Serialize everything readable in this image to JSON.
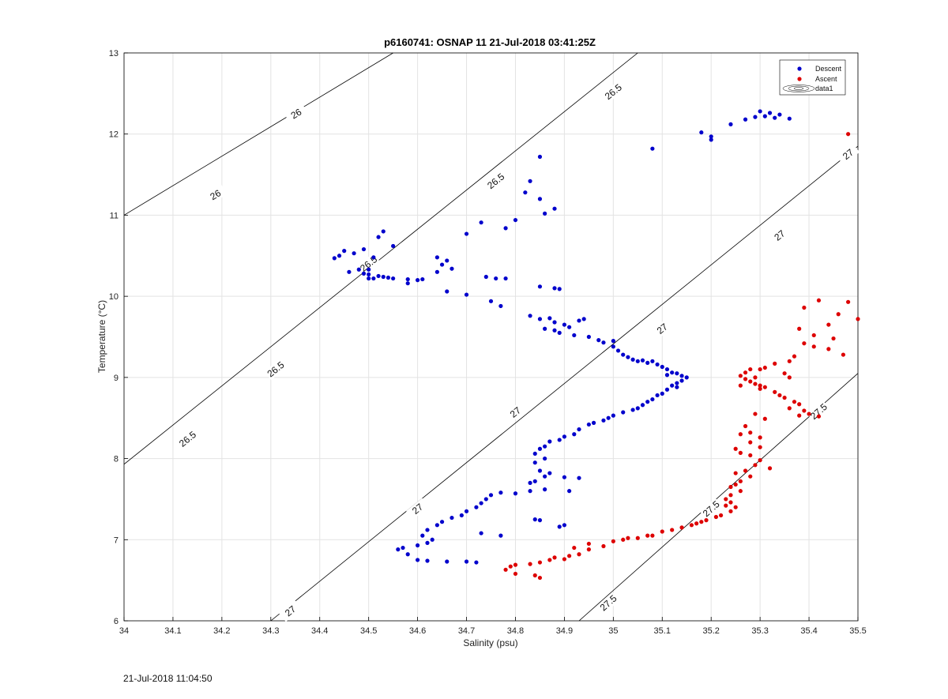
{
  "footer": {
    "timestamp": "21-Jul-2018 11:04:50"
  },
  "chart_data": {
    "type": "scatter",
    "title": "p6160741: OSNAP 11 21-Jul-2018 03:41:25Z",
    "xlabel": "Salinity (psu)",
    "ylabel": "Temperature (°C)",
    "xlim": [
      34,
      35.5
    ],
    "ylim": [
      6,
      13
    ],
    "xticks": [
      "34",
      "34.1",
      "34.2",
      "34.3",
      "34.4",
      "34.5",
      "34.6",
      "34.7",
      "34.8",
      "34.9",
      "35",
      "35.1",
      "35.2",
      "35.3",
      "35.4",
      "35.5"
    ],
    "yticks": [
      "6",
      "7",
      "8",
      "9",
      "10",
      "11",
      "12",
      "13"
    ],
    "grid": true,
    "legend": {
      "placement": "top-right",
      "entries": [
        "Descent",
        "Ascent",
        "data1"
      ]
    },
    "colors": {
      "descent": "#0000cc",
      "ascent": "#dd0000",
      "grid": "#e3e3e3",
      "contour": "#000000"
    },
    "contours": [
      {
        "level": "26",
        "segment": [
          [
            34.0,
            11.0
          ],
          [
            34.55,
            13.0
          ]
        ],
        "labels": [
          [
            34.187,
            11.25
          ],
          [
            34.352,
            12.25
          ]
        ]
      },
      {
        "level": "26.5",
        "segment": [
          [
            34.0,
            7.93
          ],
          [
            35.05,
            13.0
          ]
        ],
        "labels": [
          [
            34.31,
            9.1
          ],
          [
            34.13,
            8.24
          ],
          [
            34.5,
            10.4
          ],
          [
            34.76,
            11.42
          ],
          [
            35.0,
            12.52
          ]
        ]
      },
      {
        "level": "27",
        "segment": [
          [
            34.3,
            6.0
          ],
          [
            35.5,
            11.85
          ]
        ],
        "labels": [
          [
            34.34,
            6.12
          ],
          [
            34.6,
            7.38
          ],
          [
            34.8,
            8.57
          ],
          [
            35.1,
            9.6
          ],
          [
            35.34,
            10.75
          ],
          [
            35.48,
            11.75
          ]
        ]
      },
      {
        "level": "27.5",
        "segment": [
          [
            34.93,
            6.0
          ],
          [
            35.5,
            9.05
          ]
        ],
        "labels": [
          [
            34.99,
            6.22
          ],
          [
            35.2,
            7.38
          ],
          [
            35.42,
            8.58
          ]
        ]
      }
    ],
    "series": [
      {
        "name": "Descent",
        "points": [
          [
            35.3,
            12.28
          ],
          [
            35.32,
            12.26
          ],
          [
            35.34,
            12.24
          ],
          [
            35.31,
            12.22
          ],
          [
            35.29,
            12.21
          ],
          [
            35.33,
            12.2
          ],
          [
            35.36,
            12.19
          ],
          [
            35.27,
            12.18
          ],
          [
            35.24,
            12.12
          ],
          [
            35.18,
            12.02
          ],
          [
            35.2,
            11.97
          ],
          [
            35.2,
            11.93
          ],
          [
            35.08,
            11.82
          ],
          [
            34.85,
            11.72
          ],
          [
            34.83,
            11.42
          ],
          [
            34.82,
            11.28
          ],
          [
            34.85,
            11.2
          ],
          [
            34.88,
            11.08
          ],
          [
            34.86,
            11.02
          ],
          [
            34.8,
            10.94
          ],
          [
            34.73,
            10.91
          ],
          [
            34.78,
            10.84
          ],
          [
            34.7,
            10.77
          ],
          [
            34.53,
            10.8
          ],
          [
            34.52,
            10.73
          ],
          [
            34.55,
            10.62
          ],
          [
            34.45,
            10.56
          ],
          [
            34.44,
            10.5
          ],
          [
            34.43,
            10.47
          ],
          [
            34.49,
            10.58
          ],
          [
            34.47,
            10.53
          ],
          [
            34.51,
            10.48
          ],
          [
            34.64,
            10.48
          ],
          [
            34.66,
            10.44
          ],
          [
            34.65,
            10.39
          ],
          [
            34.67,
            10.34
          ],
          [
            34.64,
            10.3
          ],
          [
            34.48,
            10.33
          ],
          [
            34.5,
            10.33
          ],
          [
            34.46,
            10.3
          ],
          [
            34.49,
            10.28
          ],
          [
            34.5,
            10.27
          ],
          [
            34.52,
            10.25
          ],
          [
            34.53,
            10.24
          ],
          [
            34.54,
            10.23
          ],
          [
            34.55,
            10.22
          ],
          [
            34.51,
            10.22
          ],
          [
            34.5,
            10.22
          ],
          [
            34.58,
            10.21
          ],
          [
            34.6,
            10.2
          ],
          [
            34.61,
            10.21
          ],
          [
            34.58,
            10.16
          ],
          [
            34.74,
            10.24
          ],
          [
            34.76,
            10.22
          ],
          [
            34.78,
            10.22
          ],
          [
            34.85,
            10.12
          ],
          [
            34.88,
            10.1
          ],
          [
            34.89,
            10.09
          ],
          [
            34.66,
            10.06
          ],
          [
            34.7,
            10.02
          ],
          [
            34.75,
            9.94
          ],
          [
            34.77,
            9.88
          ],
          [
            34.83,
            9.76
          ],
          [
            34.85,
            9.72
          ],
          [
            34.87,
            9.73
          ],
          [
            34.88,
            9.68
          ],
          [
            34.9,
            9.65
          ],
          [
            34.91,
            9.62
          ],
          [
            34.93,
            9.7
          ],
          [
            34.94,
            9.72
          ],
          [
            34.86,
            9.6
          ],
          [
            34.88,
            9.58
          ],
          [
            34.89,
            9.55
          ],
          [
            34.92,
            9.52
          ],
          [
            34.95,
            9.5
          ],
          [
            34.97,
            9.46
          ],
          [
            35.0,
            9.45
          ],
          [
            34.98,
            9.43
          ],
          [
            35.0,
            9.38
          ],
          [
            35.01,
            9.33
          ],
          [
            35.02,
            9.28
          ],
          [
            35.03,
            9.25
          ],
          [
            35.04,
            9.22
          ],
          [
            35.05,
            9.2
          ],
          [
            35.06,
            9.21
          ],
          [
            35.07,
            9.18
          ],
          [
            35.08,
            9.2
          ],
          [
            35.09,
            9.16
          ],
          [
            35.1,
            9.13
          ],
          [
            35.11,
            9.1
          ],
          [
            35.12,
            9.06
          ],
          [
            35.13,
            9.05
          ],
          [
            35.11,
            9.03
          ],
          [
            35.14,
            9.02
          ],
          [
            35.15,
            9.0
          ],
          [
            35.14,
            8.96
          ],
          [
            35.13,
            8.93
          ],
          [
            35.12,
            8.9
          ],
          [
            35.13,
            8.88
          ],
          [
            35.11,
            8.85
          ],
          [
            35.1,
            8.8
          ],
          [
            35.09,
            8.78
          ],
          [
            35.08,
            8.73
          ],
          [
            35.07,
            8.7
          ],
          [
            35.06,
            8.66
          ],
          [
            35.05,
            8.62
          ],
          [
            35.04,
            8.6
          ],
          [
            35.02,
            8.57
          ],
          [
            35.0,
            8.53
          ],
          [
            34.99,
            8.5
          ],
          [
            34.98,
            8.47
          ],
          [
            34.96,
            8.44
          ],
          [
            34.95,
            8.42
          ],
          [
            34.93,
            8.36
          ],
          [
            34.92,
            8.3
          ],
          [
            34.9,
            8.27
          ],
          [
            34.89,
            8.23
          ],
          [
            34.87,
            8.21
          ],
          [
            34.86,
            8.15
          ],
          [
            34.85,
            8.12
          ],
          [
            34.84,
            8.06
          ],
          [
            34.86,
            8.0
          ],
          [
            34.84,
            7.95
          ],
          [
            34.85,
            7.85
          ],
          [
            34.87,
            7.82
          ],
          [
            34.86,
            7.78
          ],
          [
            34.84,
            7.72
          ],
          [
            34.83,
            7.7
          ],
          [
            34.9,
            7.77
          ],
          [
            34.93,
            7.76
          ],
          [
            34.91,
            7.6
          ],
          [
            34.86,
            7.62
          ],
          [
            34.83,
            7.6
          ],
          [
            34.8,
            7.57
          ],
          [
            34.77,
            7.58
          ],
          [
            34.75,
            7.55
          ],
          [
            34.74,
            7.5
          ],
          [
            34.73,
            7.45
          ],
          [
            34.72,
            7.4
          ],
          [
            34.7,
            7.35
          ],
          [
            34.69,
            7.3
          ],
          [
            34.67,
            7.27
          ],
          [
            34.65,
            7.22
          ],
          [
            34.64,
            7.18
          ],
          [
            34.62,
            7.12
          ],
          [
            34.61,
            7.05
          ],
          [
            34.63,
            7.0
          ],
          [
            34.62,
            6.96
          ],
          [
            34.6,
            6.93
          ],
          [
            34.57,
            6.9
          ],
          [
            34.56,
            6.88
          ],
          [
            34.58,
            6.82
          ],
          [
            34.6,
            6.75
          ],
          [
            34.62,
            6.74
          ],
          [
            34.66,
            6.73
          ],
          [
            34.7,
            6.73
          ],
          [
            34.72,
            6.72
          ],
          [
            34.77,
            7.05
          ],
          [
            34.73,
            7.08
          ],
          [
            34.84,
            7.25
          ],
          [
            34.85,
            7.24
          ],
          [
            34.9,
            7.18
          ],
          [
            34.89,
            7.16
          ]
        ]
      },
      {
        "name": "Ascent",
        "points": [
          [
            35.48,
            12.0
          ],
          [
            35.42,
            9.95
          ],
          [
            35.48,
            9.93
          ],
          [
            35.39,
            9.86
          ],
          [
            35.46,
            9.78
          ],
          [
            35.5,
            9.72
          ],
          [
            35.44,
            9.65
          ],
          [
            35.38,
            9.6
          ],
          [
            35.41,
            9.52
          ],
          [
            35.45,
            9.48
          ],
          [
            35.39,
            9.42
          ],
          [
            35.41,
            9.38
          ],
          [
            35.44,
            9.35
          ],
          [
            35.47,
            9.28
          ],
          [
            35.37,
            9.26
          ],
          [
            35.36,
            9.2
          ],
          [
            35.33,
            9.17
          ],
          [
            35.31,
            9.12
          ],
          [
            35.3,
            9.1
          ],
          [
            35.28,
            9.1
          ],
          [
            35.27,
            9.06
          ],
          [
            35.26,
            9.02
          ],
          [
            35.29,
            9.0
          ],
          [
            35.27,
            8.98
          ],
          [
            35.28,
            8.95
          ],
          [
            35.29,
            8.92
          ],
          [
            35.3,
            8.9
          ],
          [
            35.31,
            8.88
          ],
          [
            35.26,
            8.9
          ],
          [
            35.3,
            8.86
          ],
          [
            35.33,
            8.82
          ],
          [
            35.34,
            8.78
          ],
          [
            35.35,
            8.75
          ],
          [
            35.37,
            8.7
          ],
          [
            35.38,
            8.67
          ],
          [
            35.36,
            8.62
          ],
          [
            35.39,
            8.59
          ],
          [
            35.4,
            8.55
          ],
          [
            35.38,
            8.53
          ],
          [
            35.42,
            8.52
          ],
          [
            35.36,
            9.0
          ],
          [
            35.35,
            9.05
          ],
          [
            35.29,
            8.55
          ],
          [
            35.31,
            8.49
          ],
          [
            35.27,
            8.4
          ],
          [
            35.28,
            8.32
          ],
          [
            35.26,
            8.3
          ],
          [
            35.3,
            8.26
          ],
          [
            35.28,
            8.2
          ],
          [
            35.3,
            8.14
          ],
          [
            35.25,
            8.12
          ],
          [
            35.26,
            8.07
          ],
          [
            35.28,
            8.04
          ],
          [
            35.3,
            7.98
          ],
          [
            35.29,
            7.92
          ],
          [
            35.32,
            7.88
          ],
          [
            35.27,
            7.85
          ],
          [
            35.25,
            7.82
          ],
          [
            35.28,
            7.78
          ],
          [
            35.26,
            7.72
          ],
          [
            35.25,
            7.68
          ],
          [
            35.24,
            7.65
          ],
          [
            35.26,
            7.6
          ],
          [
            35.24,
            7.55
          ],
          [
            35.23,
            7.5
          ],
          [
            35.24,
            7.46
          ],
          [
            35.23,
            7.42
          ],
          [
            35.25,
            7.4
          ],
          [
            35.24,
            7.35
          ],
          [
            35.22,
            7.3
          ],
          [
            35.21,
            7.28
          ],
          [
            35.19,
            7.24
          ],
          [
            35.18,
            7.22
          ],
          [
            35.16,
            7.18
          ],
          [
            35.14,
            7.15
          ],
          [
            35.12,
            7.12
          ],
          [
            35.1,
            7.1
          ],
          [
            35.08,
            7.05
          ],
          [
            35.05,
            7.02
          ],
          [
            35.02,
            7.0
          ],
          [
            35.0,
            6.98
          ],
          [
            34.98,
            6.92
          ],
          [
            34.95,
            6.88
          ],
          [
            34.93,
            6.82
          ],
          [
            34.91,
            6.8
          ],
          [
            34.9,
            6.76
          ],
          [
            34.87,
            6.75
          ],
          [
            34.85,
            6.72
          ],
          [
            34.83,
            6.7
          ],
          [
            34.8,
            6.69
          ],
          [
            34.79,
            6.67
          ],
          [
            34.78,
            6.63
          ],
          [
            34.8,
            6.58
          ],
          [
            34.84,
            6.56
          ],
          [
            34.85,
            6.53
          ],
          [
            34.88,
            6.78
          ],
          [
            34.92,
            6.9
          ],
          [
            34.95,
            6.95
          ],
          [
            35.03,
            7.02
          ],
          [
            35.07,
            7.05
          ],
          [
            35.17,
            7.2
          ]
        ]
      }
    ]
  }
}
